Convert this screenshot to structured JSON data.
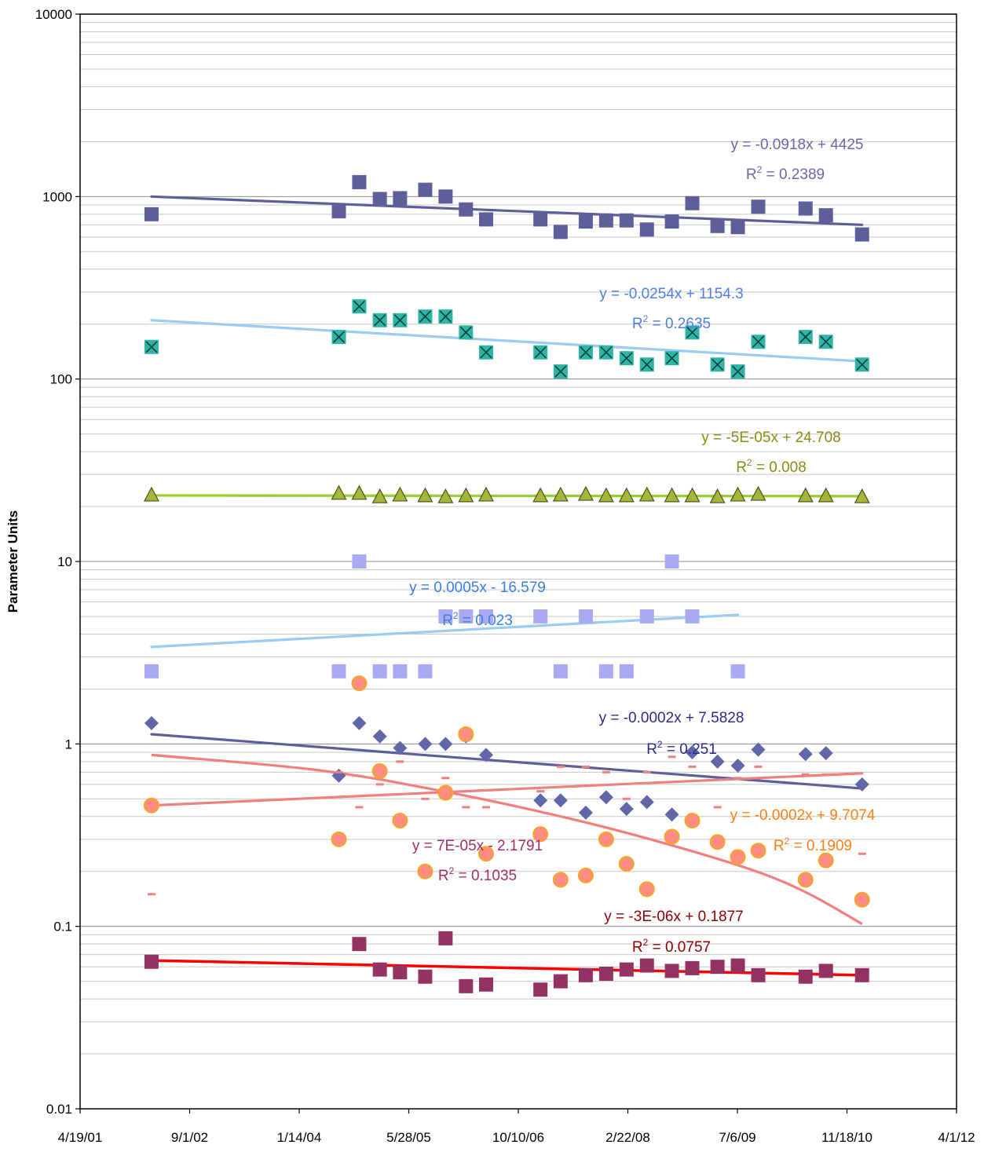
{
  "chart_data": {
    "type": "scatter",
    "title": "",
    "xlabel": "",
    "ylabel": "Parameter Units",
    "y_scale": "log",
    "ylim": [
      0.01,
      10000
    ],
    "xlim": [
      "4/19/01",
      "4/1/12"
    ],
    "grid": {
      "y_major": true,
      "y_minor": true,
      "x": false
    },
    "legend": "none",
    "x_tick_labels": [
      "4/19/01",
      "9/1/02",
      "1/14/04",
      "5/28/05",
      "10/10/06",
      "2/22/08",
      "7/6/09",
      "11/18/10",
      "4/1/12"
    ],
    "y_tick_labels": [
      "0.01",
      "0.1",
      "1",
      "10",
      "100",
      "1000",
      "10000"
    ],
    "series": [
      {
        "marker": "square",
        "color": "#5E5E9A",
        "points": [
          [
            "2002-03-11",
            800
          ],
          [
            "2004-07-13",
            830
          ],
          [
            "2004-10-14",
            1200
          ],
          [
            "2005-01-16",
            970
          ],
          [
            "2005-04-18",
            980
          ],
          [
            "2005-08-11",
            1090
          ],
          [
            "2005-11-12",
            1000
          ],
          [
            "2006-02-13",
            850
          ],
          [
            "2006-05-16",
            750
          ],
          [
            "2007-01-19",
            750
          ],
          [
            "2007-04-21",
            640
          ],
          [
            "2007-08-14",
            730
          ],
          [
            "2007-11-15",
            740
          ],
          [
            "2008-02-16",
            740
          ],
          [
            "2008-05-19",
            660
          ],
          [
            "2008-09-10",
            730
          ],
          [
            "2008-12-12",
            920
          ],
          [
            "2009-04-06",
            690
          ],
          [
            "2009-07-08",
            680
          ],
          [
            "2009-10-09",
            880
          ],
          [
            "2010-05-13",
            860
          ],
          [
            "2010-08-14",
            790
          ],
          [
            "2011-01-26",
            620
          ]
        ],
        "trendline": {
          "type": "linear",
          "start": 1000,
          "end": 700,
          "color": "#5E5E9A"
        },
        "equation": "y = -0.0918x + 4425",
        "r2_label": "R",
        "r2_sup": "2",
        "r2_value": " = 0.2389",
        "label_color": "#6B66A8"
      },
      {
        "marker": "square-x",
        "color": "#2EB5A6",
        "points": [
          [
            "2002-03-11",
            150
          ],
          [
            "2004-07-13",
            170
          ],
          [
            "2004-10-14",
            250
          ],
          [
            "2005-01-16",
            210
          ],
          [
            "2005-04-18",
            210
          ],
          [
            "2005-08-11",
            220
          ],
          [
            "2005-11-12",
            220
          ],
          [
            "2006-02-13",
            180
          ],
          [
            "2006-05-16",
            140
          ],
          [
            "2007-01-19",
            140
          ],
          [
            "2007-04-21",
            110
          ],
          [
            "2007-08-14",
            140
          ],
          [
            "2007-11-15",
            140
          ],
          [
            "2008-02-16",
            130
          ],
          [
            "2008-05-19",
            120
          ],
          [
            "2008-09-10",
            130
          ],
          [
            "2008-12-12",
            180
          ],
          [
            "2009-04-06",
            120
          ],
          [
            "2009-07-08",
            110
          ],
          [
            "2009-10-09",
            160
          ],
          [
            "2010-05-13",
            170
          ],
          [
            "2010-08-14",
            160
          ],
          [
            "2011-01-26",
            120
          ]
        ],
        "trendline": {
          "type": "linear",
          "start": 210,
          "end": 125,
          "color": "#99CCF2"
        },
        "equation": "y = -0.0254x + 1154.3",
        "r2_label": "R",
        "r2_sup": "2",
        "r2_value": " = 0.2635",
        "label_color": "#4F7EE8"
      },
      {
        "marker": "triangle",
        "color": "#A6B63A",
        "points": [
          [
            "2002-03-11",
            23
          ],
          [
            "2004-07-13",
            23.5
          ],
          [
            "2004-10-14",
            23.5
          ],
          [
            "2005-01-16",
            22.5
          ],
          [
            "2005-04-18",
            23
          ],
          [
            "2005-08-11",
            22.8
          ],
          [
            "2005-11-12",
            22.5
          ],
          [
            "2006-02-13",
            22.8
          ],
          [
            "2006-05-16",
            23
          ],
          [
            "2007-01-19",
            22.8
          ],
          [
            "2007-04-21",
            23
          ],
          [
            "2007-08-14",
            23.2
          ],
          [
            "2007-11-15",
            22.8
          ],
          [
            "2008-02-16",
            22.8
          ],
          [
            "2008-05-19",
            23
          ],
          [
            "2008-09-10",
            22.8
          ],
          [
            "2008-12-12",
            22.8
          ],
          [
            "2009-04-06",
            22.5
          ],
          [
            "2009-07-08",
            23
          ],
          [
            "2009-10-09",
            23.2
          ],
          [
            "2010-05-13",
            22.8
          ],
          [
            "2010-08-14",
            22.8
          ],
          [
            "2011-01-26",
            22.5
          ]
        ],
        "trendline": {
          "type": "linear",
          "start": 23,
          "end": 22.8,
          "color": "#9ACD32"
        },
        "equation": "y = -5E-05x + 24.708",
        "r2_label": "R",
        "r2_sup": "2",
        "r2_value": " = 0.008",
        "label_color": "#8B8B12"
      },
      {
        "marker": "square",
        "color": "#A9AAF2",
        "points": [
          [
            "2002-03-11",
            2.5
          ],
          [
            "2004-07-13",
            2.5
          ],
          [
            "2004-10-14",
            10
          ],
          [
            "2005-01-16",
            2.5
          ],
          [
            "2005-04-18",
            2.5
          ],
          [
            "2005-08-11",
            2.5
          ],
          [
            "2005-11-12",
            5
          ],
          [
            "2006-02-13",
            5
          ],
          [
            "2006-05-16",
            5
          ],
          [
            "2007-01-19",
            5
          ],
          [
            "2007-04-21",
            2.5
          ],
          [
            "2007-08-14",
            5
          ],
          [
            "2007-11-15",
            2.5
          ],
          [
            "2008-02-16",
            2.5
          ],
          [
            "2008-05-19",
            5
          ],
          [
            "2008-09-10",
            10
          ],
          [
            "2008-12-12",
            5
          ],
          [
            "2009-07-08",
            2.5
          ]
        ],
        "trendline": {
          "type": "linear",
          "start": 3.4,
          "end": 5.1,
          "color": "#99CCF2"
        },
        "equation": "y = 0.0005x - 16.579",
        "r2_label": "R",
        "r2_sup": "2",
        "r2_value": " = 0.023",
        "label_color": "#3B7FE0"
      },
      {
        "marker": "diamond",
        "color": "#6166A8",
        "points": [
          [
            "2002-03-11",
            1.3
          ],
          [
            "2004-07-13",
            0.67
          ],
          [
            "2004-10-14",
            1.3
          ],
          [
            "2005-01-16",
            1.1
          ],
          [
            "2005-04-18",
            0.95
          ],
          [
            "2005-08-11",
            1
          ],
          [
            "2005-11-12",
            1
          ],
          [
            "2006-02-13",
            1.1
          ],
          [
            "2006-05-16",
            0.87
          ],
          [
            "2007-01-19",
            0.49
          ],
          [
            "2007-04-21",
            0.49
          ],
          [
            "2007-08-14",
            0.42
          ],
          [
            "2007-11-15",
            0.51
          ],
          [
            "2008-02-16",
            0.44
          ],
          [
            "2008-05-19",
            0.48
          ],
          [
            "2008-09-10",
            0.41
          ],
          [
            "2008-12-12",
            0.9
          ],
          [
            "2009-04-06",
            0.8
          ],
          [
            "2009-07-08",
            0.76
          ],
          [
            "2009-10-09",
            0.93
          ],
          [
            "2010-05-13",
            0.88
          ],
          [
            "2010-08-14",
            0.89
          ],
          [
            "2011-01-26",
            0.6
          ]
        ],
        "trendline": {
          "type": "linear",
          "start": 1.13,
          "end": 0.57,
          "color": "#5E5E9A"
        },
        "equation": "y = -0.0002x + 7.5828",
        "r2_label": "R",
        "r2_sup": "2",
        "r2_value": " = 0.251",
        "label_color": "#2B2B8C"
      },
      {
        "marker": "circle",
        "color": "#FF8C82",
        "points": [
          [
            "2002-03-11",
            0.46
          ],
          [
            "2004-07-13",
            0.3
          ],
          [
            "2004-10-14",
            2.15
          ],
          [
            "2005-01-16",
            0.71
          ],
          [
            "2005-04-18",
            0.38
          ],
          [
            "2005-08-11",
            0.2
          ],
          [
            "2005-11-12",
            0.54
          ],
          [
            "2006-02-13",
            1.13
          ],
          [
            "2006-05-16",
            0.25
          ],
          [
            "2007-01-19",
            0.32
          ],
          [
            "2007-04-21",
            0.18
          ],
          [
            "2007-08-14",
            0.19
          ],
          [
            "2007-11-15",
            0.3
          ],
          [
            "2008-02-16",
            0.22
          ],
          [
            "2008-05-19",
            0.16
          ],
          [
            "2008-09-10",
            0.31
          ],
          [
            "2008-12-12",
            0.38
          ],
          [
            "2009-04-06",
            0.29
          ],
          [
            "2009-07-08",
            0.24
          ],
          [
            "2009-10-09",
            0.26
          ],
          [
            "2010-05-13",
            0.18
          ],
          [
            "2010-08-14",
            0.23
          ],
          [
            "2011-01-26",
            0.14
          ]
        ],
        "trendline": {
          "type": "curve",
          "points": [
            [
              "2002-03-11",
              0.87
            ],
            [
              "2004-04-01",
              0.72
            ],
            [
              "2005-11-01",
              0.55
            ],
            [
              "2007-06-01",
              0.39
            ],
            [
              "2008-09-01",
              0.28
            ],
            [
              "2009-10-01",
              0.2
            ],
            [
              "2010-06-01",
              0.15
            ],
            [
              "2011-01-26",
              0.103
            ]
          ],
          "color": "#F08080"
        },
        "equation": "y = -0.0002x + 9.7074",
        "r2_label": "R",
        "r2_sup": "2",
        "r2_value": " = 0.1909",
        "label_color": "#FF7F17"
      },
      {
        "marker": "dash",
        "color": "#F08080",
        "points": [
          [
            "2002-03-11",
            0.15
          ],
          [
            "2004-07-13",
            0.7
          ],
          [
            "2004-10-14",
            0.45
          ],
          [
            "2005-01-16",
            0.6
          ],
          [
            "2005-04-18",
            0.8
          ],
          [
            "2005-08-11",
            0.5
          ],
          [
            "2005-11-12",
            0.65
          ],
          [
            "2006-02-13",
            0.45
          ],
          [
            "2006-05-16",
            0.45
          ],
          [
            "2007-01-19",
            0.55
          ],
          [
            "2007-04-21",
            0.75
          ],
          [
            "2007-08-14",
            0.75
          ],
          [
            "2007-11-15",
            0.7
          ],
          [
            "2008-02-16",
            0.5
          ],
          [
            "2008-05-19",
            0.7
          ],
          [
            "2008-09-10",
            0.85
          ],
          [
            "2008-12-12",
            0.75
          ],
          [
            "2009-04-06",
            0.45
          ],
          [
            "2009-07-08",
            0.65
          ],
          [
            "2009-10-09",
            0.75
          ],
          [
            "2010-05-13",
            0.68
          ],
          [
            "2010-08-14",
            0.68
          ],
          [
            "2011-01-26",
            0.25
          ]
        ],
        "trendline": {
          "type": "linear",
          "start": 0.46,
          "end": 0.69,
          "color": "#F08080"
        },
        "equation": "y = 7E-05x - 2.1791",
        "r2_label": "R",
        "r2_sup": "2",
        "r2_value": " = 0.1035",
        "label_color": "#A0306A"
      },
      {
        "marker": "square",
        "color": "#953264",
        "points": [
          [
            "2002-03-11",
            0.064
          ],
          [
            "2004-10-14",
            0.08
          ],
          [
            "2005-01-16",
            0.058
          ],
          [
            "2005-04-18",
            0.056
          ],
          [
            "2005-08-11",
            0.053
          ],
          [
            "2005-11-12",
            0.086
          ],
          [
            "2006-02-13",
            0.047
          ],
          [
            "2006-05-16",
            0.048
          ],
          [
            "2007-01-19",
            0.045
          ],
          [
            "2007-04-21",
            0.05
          ],
          [
            "2007-08-14",
            0.054
          ],
          [
            "2007-11-15",
            0.055
          ],
          [
            "2008-02-16",
            0.058
          ],
          [
            "2008-05-19",
            0.061
          ],
          [
            "2008-09-10",
            0.057
          ],
          [
            "2008-12-12",
            0.059
          ],
          [
            "2009-04-06",
            0.06
          ],
          [
            "2009-07-08",
            0.061
          ],
          [
            "2009-10-09",
            0.054
          ],
          [
            "2010-05-13",
            0.053
          ],
          [
            "2010-08-14",
            0.057
          ],
          [
            "2011-01-26",
            0.054
          ]
        ],
        "trendline": {
          "type": "linear",
          "start": 0.065,
          "end": 0.054,
          "color": "#FF0000"
        },
        "equation": "y = -3E-06x + 0.1877",
        "r2_label": "R",
        "r2_sup": "2",
        "r2_value": " = 0.0757",
        "label_color": "#8B0000"
      }
    ]
  }
}
